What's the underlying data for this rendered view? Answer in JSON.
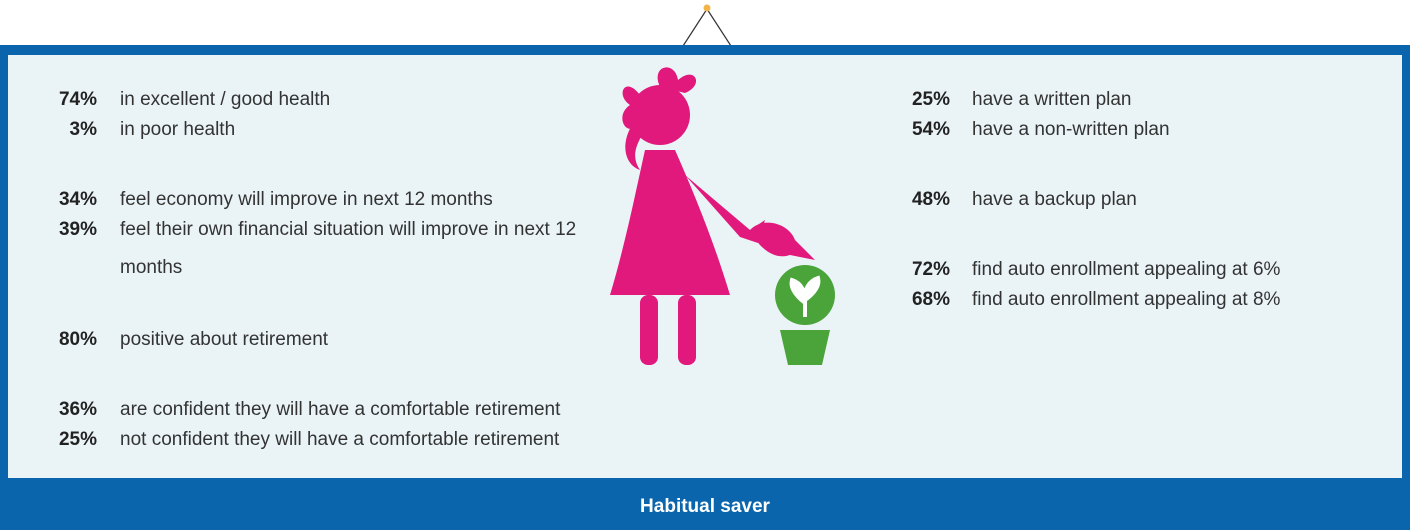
{
  "left": [
    {
      "percent": "74%",
      "text": "in excellent / good health"
    },
    {
      "percent": "3%",
      "text": "in poor health"
    },
    {
      "percent": "34%",
      "text": "feel economy will improve in next 12 months"
    },
    {
      "percent": "39%",
      "text": "feel their own financial situation will improve in next 12 months"
    },
    {
      "percent": "80%",
      "text": "positive about retirement"
    },
    {
      "percent": "36%",
      "text": "are confident they will have a comfortable retirement"
    },
    {
      "percent": "25%",
      "text": "not confident they will have a comfortable retirement"
    }
  ],
  "right": [
    {
      "percent": "25%",
      "text": "have a written plan"
    },
    {
      "percent": "54%",
      "text": "have a non-written plan"
    },
    {
      "percent": "48%",
      "text": "have a backup plan"
    },
    {
      "percent": "72%",
      "text": "find auto enrollment appealing at 6%"
    },
    {
      "percent": "68%",
      "text": "find auto enrollment appealing at 8%"
    }
  ],
  "footer": {
    "title": "Habitual saver"
  }
}
